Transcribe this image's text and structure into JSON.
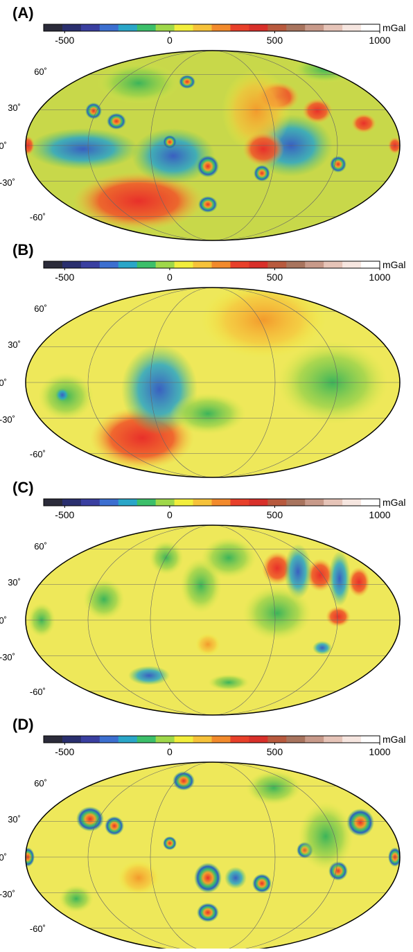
{
  "panels": [
    {
      "label": "(A)"
    },
    {
      "label": "(B)"
    },
    {
      "label": "(C)"
    },
    {
      "label": "(D)"
    }
  ],
  "colorbar": {
    "unit": "mGal",
    "lim": [
      -600,
      1000
    ],
    "ticks": [
      -500,
      0,
      500,
      1000
    ],
    "colors": [
      "#2b2b3a",
      "#2a2f6e",
      "#3a3fa0",
      "#3c6fd0",
      "#2aa6c8",
      "#3cbf6a",
      "#9fd84a",
      "#f2ee3c",
      "#f6c23a",
      "#f28a2c",
      "#e8402a",
      "#d8302a",
      "#b85a3e",
      "#a8745e",
      "#c89a8a",
      "#e6c4b8",
      "#f6e6e0",
      "#ffffff"
    ]
  },
  "lat_labels": [
    "60˚",
    "30˚",
    "0˚",
    "-30˚",
    "-60˚"
  ]
}
